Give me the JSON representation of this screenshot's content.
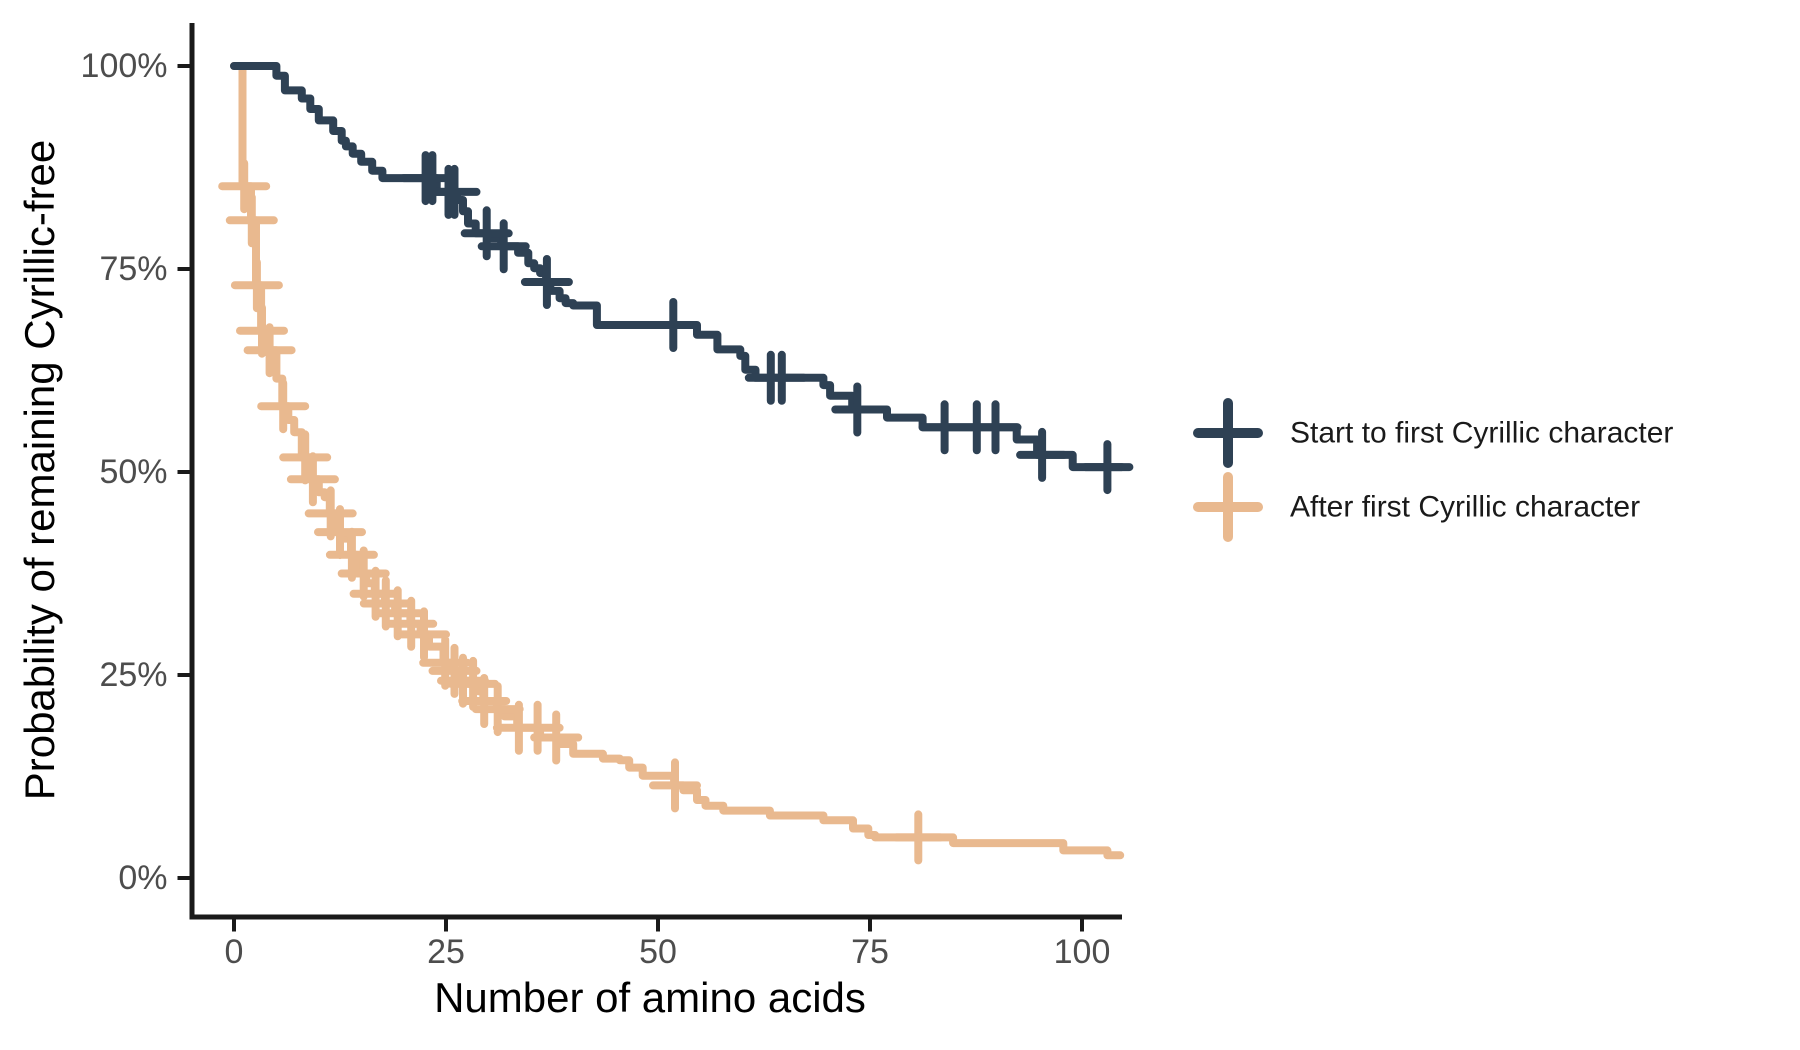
{
  "figure": {
    "background": "#ffffff",
    "axis_line_color": "#1a1a1a",
    "tick_label_color": "#4d4d4d"
  },
  "legend": {
    "position": "right",
    "marker": "plus-cross",
    "items": [
      {
        "label": "Start to first Cyrillic character",
        "color": "#2e4154"
      },
      {
        "label": "After first Cyrillic character",
        "color": "#e9b98f"
      }
    ]
  },
  "chart_data": {
    "type": "line",
    "subtype": "kaplan-meier-step-survival",
    "title": "",
    "xlabel": "Number of amino acids",
    "ylabel": "Probability of remaining Cyrillic-free",
    "xlim": [
      0,
      105
    ],
    "ylim_pct": [
      0,
      100
    ],
    "x_ticks": [
      0,
      25,
      50,
      75,
      100
    ],
    "y_ticks_pct": [
      0,
      25,
      50,
      75,
      100
    ],
    "y_tick_labels": [
      "0%",
      "25%",
      "50%",
      "75%",
      "100%"
    ],
    "grid": false,
    "legend_position": "right-center",
    "series": [
      {
        "name": "Start to first Cyrillic character",
        "color": "#2e4154",
        "steps": [
          [
            0,
            100
          ],
          [
            5,
            98.8
          ],
          [
            6,
            97.0
          ],
          [
            8,
            96.0
          ],
          [
            9,
            94.7
          ],
          [
            10,
            93.3
          ],
          [
            11.7,
            92.0
          ],
          [
            12.7,
            90.8
          ],
          [
            13.2,
            90.1
          ],
          [
            14,
            89.2
          ],
          [
            15,
            88.2
          ],
          [
            16.3,
            87.1
          ],
          [
            17.5,
            86.2
          ],
          [
            23.9,
            84.5
          ],
          [
            26.3,
            83.5
          ],
          [
            27,
            82.1
          ],
          [
            27.6,
            80.6
          ],
          [
            28.5,
            79.4
          ],
          [
            30,
            78.8
          ],
          [
            31.5,
            77.8
          ],
          [
            33.5,
            77.0
          ],
          [
            34.7,
            75.7
          ],
          [
            35.4,
            75.1
          ],
          [
            36.1,
            74.5
          ],
          [
            36.8,
            73.4
          ],
          [
            37.3,
            72.3
          ],
          [
            38.4,
            71.4
          ],
          [
            39.1,
            70.8
          ],
          [
            40,
            70.5
          ],
          [
            42.8,
            68.1
          ],
          [
            54.6,
            66.9
          ],
          [
            57,
            65.1
          ],
          [
            59.7,
            64.3
          ],
          [
            60.3,
            62.6
          ],
          [
            61.5,
            61.6
          ],
          [
            69.5,
            60.7
          ],
          [
            70.3,
            59.4
          ],
          [
            72.9,
            57.7
          ],
          [
            77,
            56.7
          ],
          [
            81.2,
            55.5
          ],
          [
            92.3,
            54.0
          ],
          [
            94.7,
            52.1
          ],
          [
            98.9,
            50.6
          ],
          [
            104.7,
            50.6
          ]
        ],
        "censor_x": [
          22.6,
          23.4,
          25.3,
          26.0,
          29.8,
          31.8,
          36.9,
          51.8,
          63.3,
          64.6,
          73.5,
          83.8,
          87.6,
          89.8,
          95.3,
          103
        ]
      },
      {
        "name": "After first Cyrillic character",
        "color": "#e9b98f",
        "steps": [
          [
            0,
            100
          ],
          [
            1,
            85.2
          ],
          [
            2,
            81.0
          ],
          [
            2.6,
            73.0
          ],
          [
            3.2,
            67.4
          ],
          [
            4,
            65.0
          ],
          [
            5,
            61.5
          ],
          [
            5.7,
            58.1
          ],
          [
            6.4,
            56.4
          ],
          [
            7.1,
            54.9
          ],
          [
            8,
            51.8
          ],
          [
            9,
            49.1
          ],
          [
            10,
            47.5
          ],
          [
            10.7,
            46.9
          ],
          [
            11.3,
            44.9
          ],
          [
            12,
            42.6
          ],
          [
            12.8,
            41.8
          ],
          [
            13.8,
            39.8
          ],
          [
            14.4,
            38.4
          ],
          [
            15,
            37.5
          ],
          [
            15.6,
            36.3
          ],
          [
            16.6,
            35.0
          ],
          [
            17.8,
            33.8
          ],
          [
            19,
            32.6
          ],
          [
            20.8,
            31.3
          ],
          [
            22,
            30.0
          ],
          [
            23,
            28.5
          ],
          [
            24.7,
            26.5
          ],
          [
            25.7,
            25.5
          ],
          [
            26.6,
            24.3
          ],
          [
            27.7,
            23.9
          ],
          [
            28.8,
            23.0
          ],
          [
            29.4,
            21.8
          ],
          [
            31,
            20.8
          ],
          [
            31.9,
            19.9
          ],
          [
            33.4,
            18.5
          ],
          [
            36.1,
            17.3
          ],
          [
            38.4,
            16.5
          ],
          [
            40,
            15.3
          ],
          [
            43.5,
            14.7
          ],
          [
            45.5,
            14.5
          ],
          [
            46.6,
            13.6
          ],
          [
            48.2,
            12.6
          ],
          [
            51.9,
            11.4
          ],
          [
            53,
            10.8
          ],
          [
            54.6,
            9.6
          ],
          [
            55.6,
            8.9
          ],
          [
            57.7,
            8.3
          ],
          [
            63.2,
            7.7
          ],
          [
            69.5,
            7.1
          ],
          [
            73,
            6.1
          ],
          [
            74.8,
            5.3
          ],
          [
            75.6,
            5.0
          ],
          [
            84.8,
            4.3
          ],
          [
            97.8,
            3.4
          ],
          [
            103,
            2.8
          ],
          [
            104.5,
            2.8
          ]
        ],
        "censor_x": [
          1.2,
          2.1,
          2.7,
          3.3,
          4.2,
          5.8,
          8.4,
          9.3,
          11.4,
          12.5,
          13.9,
          15.3,
          16.7,
          17.9,
          19.3,
          20.9,
          22.4,
          24.9,
          26.0,
          27.0,
          28.2,
          29.5,
          31.1,
          33.6,
          35.8,
          38.0,
          52.0,
          80.7
        ]
      }
    ]
  }
}
